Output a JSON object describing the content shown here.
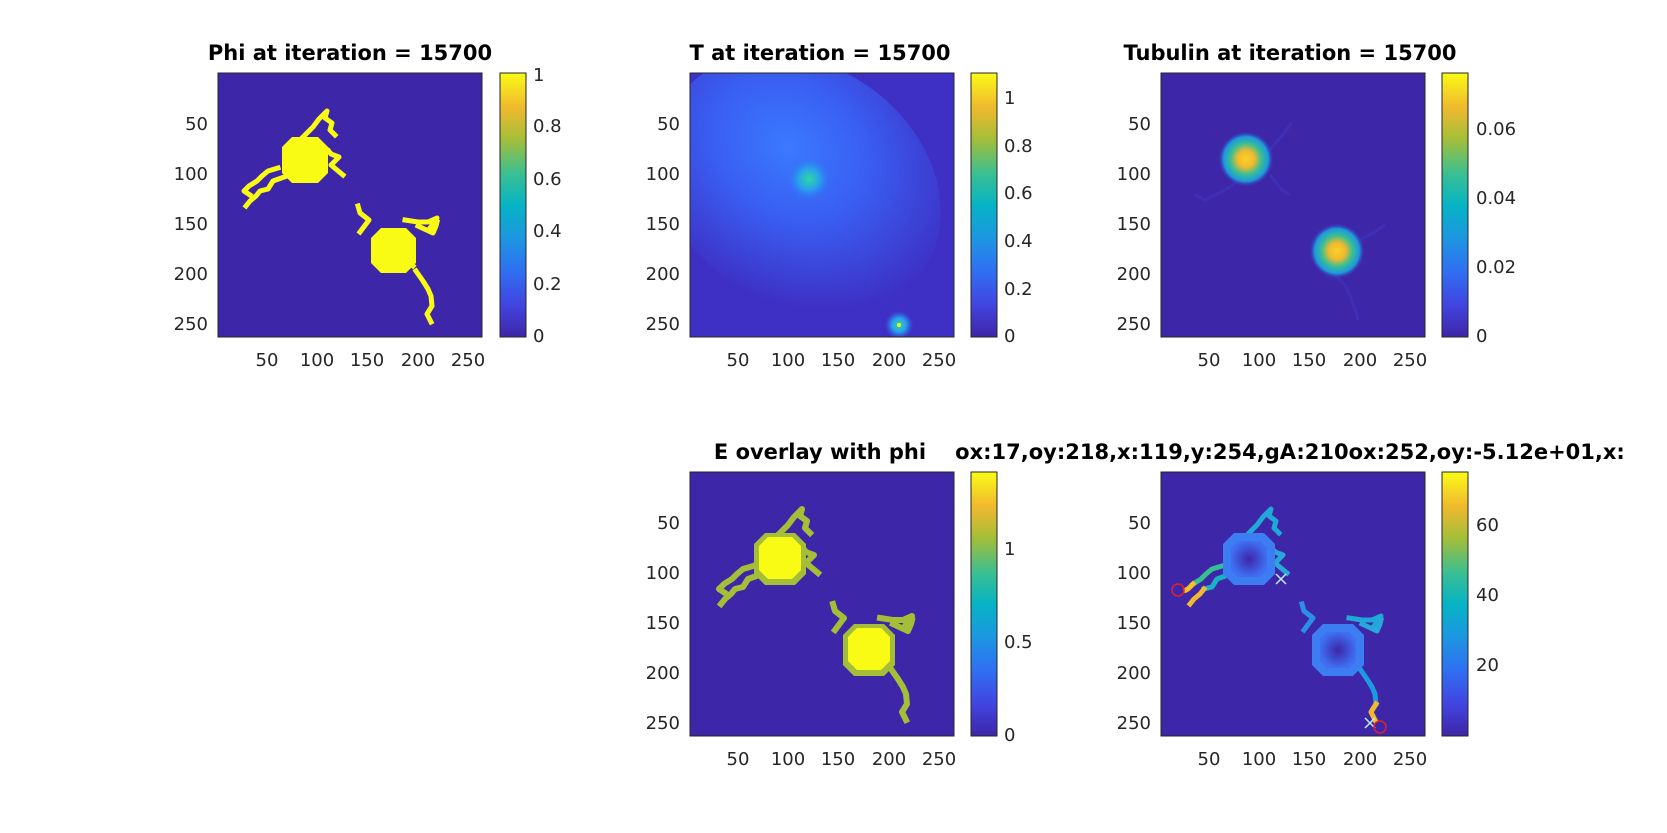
{
  "window": {
    "background": "#ffffff"
  },
  "colors": {
    "background": "#3e26a8",
    "cell": "#f9fb15",
    "contour": "#a5be38",
    "axis": "#262626"
  },
  "chart_data": [
    {
      "id": "phi",
      "type": "heatmap",
      "title": "Phi at iteration = 15700",
      "xticks": [
        "50",
        "100",
        "150",
        "200",
        "250"
      ],
      "yticks": [
        "50",
        "100",
        "150",
        "200",
        "250"
      ],
      "xlim": [
        1,
        262
      ],
      "ylim": [
        1,
        262
      ],
      "colorbar": {
        "ticks": [
          "0",
          "0.2",
          "0.4",
          "0.6",
          "0.8",
          "1"
        ],
        "range": [
          0,
          1
        ]
      },
      "cells": [
        {
          "x": 87,
          "y": 87
        },
        {
          "x": 177,
          "y": 177
        }
      ]
    },
    {
      "id": "T",
      "type": "heatmap",
      "title": "T at iteration = 15700",
      "xticks": [
        "50",
        "100",
        "150",
        "200",
        "250"
      ],
      "yticks": [
        "50",
        "100",
        "150",
        "200",
        "250"
      ],
      "xlim": [
        1,
        262
      ],
      "ylim": [
        1,
        262
      ],
      "colorbar": {
        "ticks": [
          "0",
          "0.2",
          "0.4",
          "0.6",
          "0.8",
          "1"
        ],
        "range": [
          0,
          1.1
        ]
      },
      "sources": [
        {
          "x": 119,
          "y": 105
        },
        {
          "x": 210,
          "y": 252
        }
      ]
    },
    {
      "id": "tubulin",
      "type": "heatmap",
      "title": "Tubulin at iteration = 15700",
      "xticks": [
        "50",
        "100",
        "150",
        "200",
        "250"
      ],
      "yticks": [
        "50",
        "100",
        "150",
        "200",
        "250"
      ],
      "xlim": [
        1,
        262
      ],
      "ylim": [
        1,
        262
      ],
      "colorbar": {
        "ticks": [
          "0",
          "0.02",
          "0.04",
          "0.06"
        ],
        "range": [
          0,
          0.075
        ]
      },
      "peaks": [
        {
          "x": 85,
          "y": 85,
          "value": 0.075
        },
        {
          "x": 177,
          "y": 177,
          "value": 0.075
        }
      ]
    },
    {
      "id": "E",
      "type": "heatmap",
      "title": "E overlay with phi",
      "xticks": [
        "50",
        "100",
        "150",
        "200",
        "250"
      ],
      "yticks": [
        "50",
        "100",
        "150",
        "200",
        "250"
      ],
      "xlim": [
        1,
        262
      ],
      "ylim": [
        1,
        262
      ],
      "colorbar": {
        "ticks": [
          "0",
          "0.5",
          "1"
        ],
        "range": [
          0,
          1.4
        ]
      }
    },
    {
      "id": "growth",
      "type": "heatmap",
      "title": "ox:17,oy:218,x:119,y:254,gA:210ox:252,oy:-5.12e+01,x:",
      "xticks": [
        "50",
        "100",
        "150",
        "200",
        "250"
      ],
      "yticks": [
        "50",
        "100",
        "150",
        "200",
        "250"
      ],
      "xlim": [
        1,
        262
      ],
      "ylim": [
        1,
        262
      ],
      "colorbar": {
        "ticks": [
          "20",
          "40",
          "60"
        ],
        "range": [
          0,
          75
        ]
      },
      "markers": [
        {
          "shape": "circle",
          "x": 17,
          "y": 118
        },
        {
          "shape": "x",
          "x": 120,
          "y": 105
        },
        {
          "shape": "x",
          "x": 210,
          "y": 252
        },
        {
          "shape": "circle",
          "x": 218,
          "y": 254
        }
      ]
    }
  ]
}
